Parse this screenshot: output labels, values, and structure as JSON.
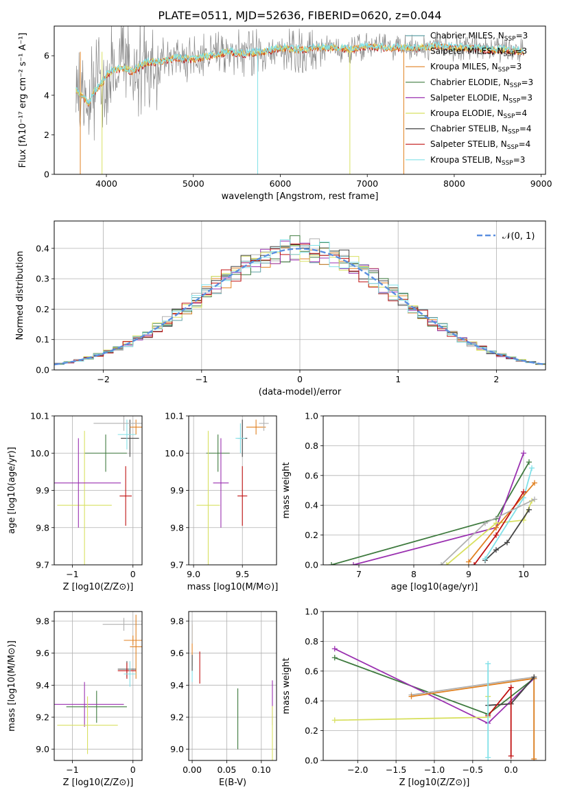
{
  "figure": {
    "title": "PLATE=0511, MJD=52636, FIBERID=0620, z=0.044"
  },
  "series_colors": [
    "#5fa0a6",
    "#b0b0b0",
    "#e08020",
    "#3e7a3e",
    "#9a30b0",
    "#d8e060",
    "#444444",
    "#c01010",
    "#80e0e8"
  ],
  "chart_data": [
    {
      "id": "spectrum",
      "type": "line",
      "xlabel": "wavelength [Angstrom, rest frame]",
      "ylabel": "Flux [fλ10⁻¹⁷ erg cm⁻² s⁻¹ A⁻¹]",
      "xlim": [
        3400,
        9050
      ],
      "ylim": [
        0,
        7.5
      ],
      "xticks": [
        4000,
        5000,
        6000,
        7000,
        8000,
        9000
      ],
      "yticks": [
        0,
        2,
        4,
        6
      ],
      "data_color": "#888888",
      "model_color": "#80d8e0",
      "model_x": [
        3650,
        3700,
        3750,
        3800,
        3850,
        3900,
        3950,
        4000,
        4100,
        4200,
        4300,
        4400,
        4500,
        4600,
        4800,
        5000,
        5200,
        5400,
        5600,
        5800,
        6000,
        6200,
        6400,
        6600,
        6800,
        7000,
        7200,
        7400,
        7600,
        7800,
        8000,
        8200,
        8400,
        8600,
        8800
      ],
      "model_y": [
        4.3,
        4.0,
        3.8,
        3.6,
        4.1,
        4.4,
        4.6,
        5.0,
        5.3,
        5.4,
        5.2,
        5.5,
        5.7,
        5.7,
        5.9,
        5.8,
        6.0,
        6.2,
        6.1,
        6.2,
        6.4,
        6.3,
        6.4,
        6.4,
        6.3,
        6.5,
        6.4,
        6.4,
        6.4,
        6.5,
        6.4,
        6.4,
        6.3,
        6.3,
        6.2
      ],
      "legend": [
        "Chabrier MILES, N_SSP=3",
        "Salpeter MILES, N_SSP=3",
        "Kroupa MILES, N_SSP=3",
        "Chabrier ELODIE, N_SSP=3",
        "Salpeter ELODIE, N_SSP=3",
        "Kroupa ELODIE, N_SSP=4",
        "Chabrier STELIB, N_SSP=4",
        "Salpeter STELIB, N_SSP=4",
        "Kroupa STELIB, N_SSP=3"
      ]
    },
    {
      "id": "residuals",
      "type": "line",
      "xlabel": "(data-model)/error",
      "ylabel": "Normed distribution",
      "xlim": [
        -2.5,
        2.5
      ],
      "ylim": [
        0,
        0.49
      ],
      "xticks": [
        -2,
        -1,
        0,
        1,
        2
      ],
      "yticks": [
        0.0,
        0.1,
        0.2,
        0.3,
        0.4
      ],
      "gaussian_label": "𝒩(0, 1)",
      "gaussian_color": "#5b8fe0",
      "bin_width": 0.1
    },
    {
      "id": "age-Z",
      "type": "scatter",
      "xlabel": "Z [log10(Z/Z⊙)]",
      "ylabel": "age  [log10(age/yr)]",
      "xlim": [
        -1.3,
        0.15
      ],
      "ylim": [
        9.7,
        10.1
      ],
      "xticks": [
        -1,
        0
      ],
      "yticks": [
        9.7,
        9.8,
        9.9,
        10.0,
        10.1
      ],
      "points": [
        {
          "x": -0.05,
          "y": 10.04,
          "xerr": 0.15,
          "yerr": 0.05,
          "c": 6
        },
        {
          "x": -0.1,
          "y": 10.05,
          "xerr": 0.15,
          "yerr": 0.04,
          "c": 8
        },
        {
          "x": 0.05,
          "y": 10.07,
          "xerr": 0.1,
          "yerr": 0.02,
          "c": 2
        },
        {
          "x": -0.15,
          "y": 10.08,
          "xerr": 0.5,
          "yerr": 0.02,
          "c": 1
        },
        {
          "x": -0.45,
          "y": 10.0,
          "xerr": 0.35,
          "yerr": 0.05,
          "c": 3
        },
        {
          "x": -0.8,
          "y": 9.86,
          "xerr": 0.45,
          "yerr": 0.2,
          "c": 5
        },
        {
          "x": -0.9,
          "y": 9.92,
          "xerr": 0.7,
          "yerr": 0.12,
          "c": 4
        },
        {
          "x": -0.12,
          "y": 9.885,
          "xerr": 0.1,
          "yerr": 0.08,
          "c": 7
        }
      ]
    },
    {
      "id": "age-mass",
      "type": "scatter",
      "xlabel": "mass [log10(M/M⊙)]",
      "ylabel": "",
      "xlim": [
        8.95,
        9.85
      ],
      "ylim": [
        9.7,
        10.1
      ],
      "xticks": [
        9.0,
        9.5
      ],
      "yticks": [
        9.7,
        9.8,
        9.9,
        10.0,
        10.1
      ],
      "points": [
        {
          "x": 9.5,
          "y": 10.04,
          "xerr": 0.05,
          "yerr": 0.05,
          "c": 6
        },
        {
          "x": 9.48,
          "y": 10.04,
          "xerr": 0.05,
          "yerr": 0.04,
          "c": 8
        },
        {
          "x": 9.64,
          "y": 10.07,
          "xerr": 0.1,
          "yerr": 0.02,
          "c": 2
        },
        {
          "x": 9.72,
          "y": 10.08,
          "xerr": 0.05,
          "yerr": 0.02,
          "c": 1
        },
        {
          "x": 9.25,
          "y": 10.0,
          "xerr": 0.12,
          "yerr": 0.05,
          "c": 3
        },
        {
          "x": 9.15,
          "y": 9.86,
          "xerr": 0.12,
          "yerr": 0.2,
          "c": 5
        },
        {
          "x": 9.28,
          "y": 9.92,
          "xerr": 0.08,
          "yerr": 0.12,
          "c": 4
        },
        {
          "x": 9.5,
          "y": 9.885,
          "xerr": 0.05,
          "yerr": 0.08,
          "c": 7
        }
      ]
    },
    {
      "id": "weight-age",
      "type": "line",
      "xlabel": "age  [log10(age/yr)]",
      "ylabel": "mass weight",
      "xlim": [
        6.35,
        10.4
      ],
      "ylim": [
        0,
        1.0
      ],
      "xticks": [
        7,
        8,
        9,
        10
      ],
      "yticks": [
        0.0,
        0.2,
        0.4,
        0.6,
        0.8,
        1.0
      ],
      "series": [
        {
          "c": 3,
          "x": [
            6.5,
            9.5,
            10.1
          ],
          "y": [
            0.0,
            0.31,
            0.69
          ]
        },
        {
          "c": 4,
          "x": [
            6.9,
            9.5,
            10.0
          ],
          "y": [
            0.0,
            0.25,
            0.75
          ]
        },
        {
          "c": 5,
          "x": [
            8.6,
            9.5,
            10.0,
            10.15
          ],
          "y": [
            0.0,
            0.28,
            0.3,
            0.43
          ]
        },
        {
          "c": 6,
          "x": [
            9.3,
            9.5,
            9.7,
            10.1
          ],
          "y": [
            0.03,
            0.1,
            0.15,
            0.37
          ]
        },
        {
          "c": 8,
          "x": [
            9.3,
            10.0,
            10.15
          ],
          "y": [
            0.04,
            0.45,
            0.65
          ]
        },
        {
          "c": 2,
          "x": [
            9.0,
            9.5,
            10.2
          ],
          "y": [
            0.02,
            0.25,
            0.55
          ]
        },
        {
          "c": 7,
          "x": [
            9.1,
            9.5,
            10.0
          ],
          "y": [
            0.0,
            0.2,
            0.49
          ]
        },
        {
          "c": 1,
          "x": [
            8.5,
            9.3,
            10.2
          ],
          "y": [
            0.0,
            0.28,
            0.44
          ]
        }
      ]
    },
    {
      "id": "mass-Z",
      "type": "scatter",
      "xlabel": "Z [log10(Z/Z⊙)]",
      "ylabel": "mass [log10(M/M⊙)]",
      "xlim": [
        -1.3,
        0.15
      ],
      "ylim": [
        8.93,
        9.86
      ],
      "xticks": [
        -1,
        0
      ],
      "yticks": [
        9.0,
        9.2,
        9.4,
        9.6,
        9.8
      ],
      "points": [
        {
          "x": 0.0,
          "y": 9.68,
          "xerr": 0.15,
          "yerr": 0.03,
          "c": 2
        },
        {
          "x": -0.15,
          "y": 9.78,
          "xerr": 0.35,
          "yerr": 0.04,
          "c": 1
        },
        {
          "x": 0.05,
          "y": 9.64,
          "xerr": 0.1,
          "yerr": 0.2,
          "c": 2
        },
        {
          "x": -0.1,
          "y": 9.5,
          "xerr": 0.15,
          "yerr": 0.05,
          "c": 6
        },
        {
          "x": -0.1,
          "y": 9.49,
          "xerr": 0.15,
          "yerr": 0.05,
          "c": 7
        },
        {
          "x": -0.05,
          "y": 9.47,
          "xerr": 0.1,
          "yerr": 0.08,
          "c": 8
        },
        {
          "x": -0.6,
          "y": 9.265,
          "xerr": 0.5,
          "yerr": 0.1,
          "c": 3
        },
        {
          "x": -0.8,
          "y": 9.28,
          "xerr": 0.65,
          "yerr": 0.14,
          "c": 4
        },
        {
          "x": -0.75,
          "y": 9.15,
          "xerr": 0.5,
          "yerr": 0.18,
          "c": 5
        }
      ]
    },
    {
      "id": "mass-EBV",
      "type": "scatter",
      "xlabel": "E(B-V)",
      "ylabel": "",
      "xlim": [
        -0.005,
        0.122
      ],
      "ylim": [
        8.93,
        9.86
      ],
      "xticks": [
        0.0,
        0.05,
        0.1
      ],
      "yticks": [
        9.0,
        9.2,
        9.4,
        9.6,
        9.8
      ],
      "points": [
        {
          "x": 0.0,
          "y": 9.65,
          "xerr": 0.0,
          "yerr": 0.13,
          "c": 2
        },
        {
          "x": 0.0,
          "y": 9.73,
          "xerr": 0.0,
          "yerr": 0.07,
          "c": 1
        },
        {
          "x": 0.0,
          "y": 9.5,
          "xerr": 0.0,
          "yerr": 0.08,
          "c": 8
        },
        {
          "x": 0.0,
          "y": 9.54,
          "xerr": 0.0,
          "yerr": 0.05,
          "c": 6
        },
        {
          "x": 0.011,
          "y": 9.51,
          "xerr": 0.0,
          "yerr": 0.1,
          "c": 7
        },
        {
          "x": 0.066,
          "y": 9.19,
          "xerr": 0.0,
          "yerr": 0.19,
          "c": 3
        },
        {
          "x": 0.116,
          "y": 9.29,
          "xerr": 0.0,
          "yerr": 0.14,
          "c": 4
        },
        {
          "x": 0.116,
          "y": 9.1,
          "xerr": 0.0,
          "yerr": 0.17,
          "c": 5
        }
      ]
    },
    {
      "id": "weight-Z",
      "type": "line",
      "xlabel": "Z [log10(Z/Z⊙)]",
      "ylabel": "mass weight",
      "xlim": [
        -2.45,
        0.45
      ],
      "ylim": [
        0,
        1.0
      ],
      "xticks": [
        -2.0,
        -1.5,
        -1.0,
        -0.5,
        0.0
      ],
      "yticks": [
        0.0,
        0.2,
        0.4,
        0.6,
        0.8,
        1.0
      ],
      "series": [
        {
          "c": 3,
          "x": [
            -2.3,
            -0.3,
            0.3
          ],
          "y": [
            0.69,
            0.31,
            0.55
          ]
        },
        {
          "c": 4,
          "x": [
            -2.3,
            -0.3,
            0.3
          ],
          "y": [
            0.75,
            0.25,
            0.55
          ]
        },
        {
          "c": 5,
          "x": [
            -2.3,
            -0.3,
            -0.3
          ],
          "y": [
            0.27,
            0.29,
            0.43
          ]
        },
        {
          "c": 1,
          "x": [
            -1.3,
            0.3,
            0.3
          ],
          "y": [
            0.44,
            0.56,
            0.0
          ]
        },
        {
          "c": 2,
          "x": [
            -1.3,
            0.3,
            0.3
          ],
          "y": [
            0.43,
            0.55,
            0.01
          ]
        },
        {
          "c": 6,
          "x": [
            -0.3,
            0.0,
            0.3
          ],
          "y": [
            0.37,
            0.38,
            0.56
          ]
        },
        {
          "c": 7,
          "x": [
            -0.3,
            0.0,
            0.0
          ],
          "y": [
            0.3,
            0.49,
            0.03
          ]
        },
        {
          "c": 8,
          "x": [
            -0.3,
            -0.3
          ],
          "y": [
            0.02,
            0.65
          ]
        }
      ]
    }
  ]
}
